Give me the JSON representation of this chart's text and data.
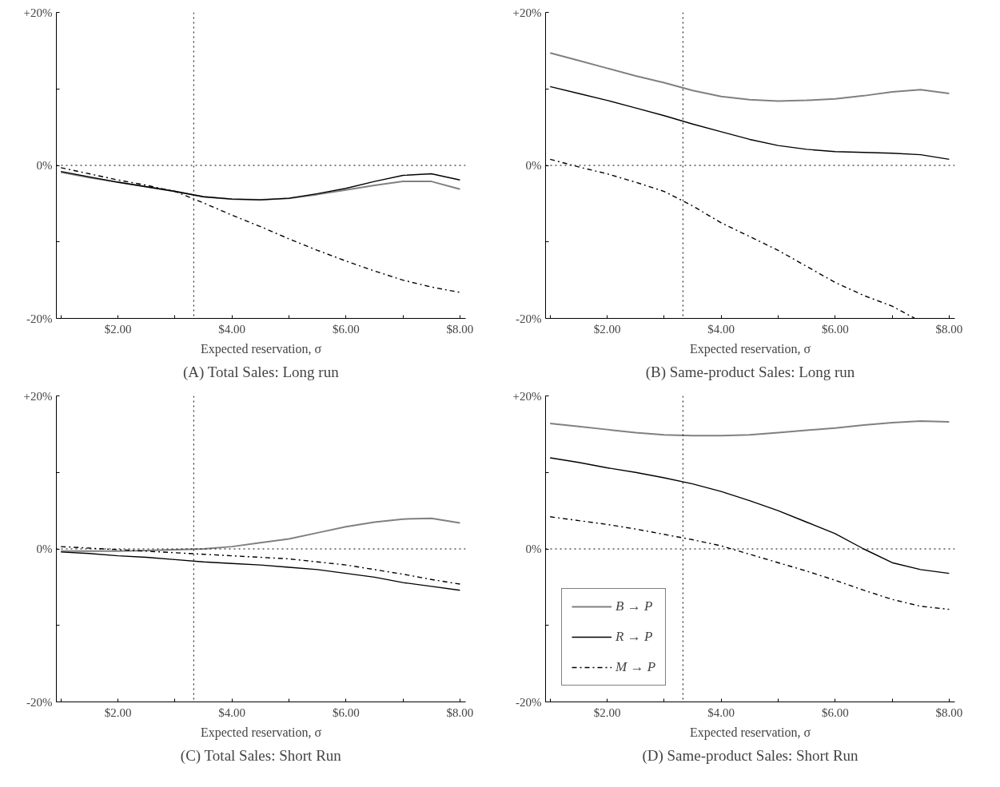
{
  "chart_data": [
    {
      "type": "line",
      "title": "(A) Total Sales: Long run",
      "xlabel": "Expected reservation, σ",
      "x": [
        1,
        1.5,
        2,
        2.5,
        3,
        3.5,
        4,
        4.5,
        5,
        5.5,
        6,
        6.5,
        7,
        7.5,
        8
      ],
      "xlim": [
        0.92,
        8.1
      ],
      "xticks": [
        {
          "value": 1,
          "label": null
        },
        {
          "value": 2,
          "label": "$2.00"
        },
        {
          "value": 3,
          "label": null
        },
        {
          "value": 4,
          "label": "$4.00"
        },
        {
          "value": 5,
          "label": null
        },
        {
          "value": 6,
          "label": "$6.00"
        },
        {
          "value": 7,
          "label": null
        },
        {
          "value": 8,
          "label": "$8.00"
        }
      ],
      "ylim": [
        -20,
        20
      ],
      "yticks": [
        {
          "value": -20,
          "label": "-20%"
        },
        {
          "value": -10,
          "label": null
        },
        {
          "value": 0,
          "label": "0%"
        },
        {
          "value": 10,
          "label": null
        },
        {
          "value": 20,
          "label": "+20%"
        }
      ],
      "grid": false,
      "legend": false,
      "ref_lines": [
        {
          "axis": "y",
          "value": 0,
          "color": "#000000",
          "line_style": "dotted"
        },
        {
          "axis": "x",
          "value": 3.33,
          "color": "#000000",
          "line_style": "dotted"
        }
      ],
      "series": [
        {
          "color": "#808080",
          "line_style": "solid",
          "values": [
            -0.9,
            -1.6,
            -2.2,
            -2.8,
            -3.4,
            -4.1,
            -4.4,
            -4.5,
            -4.3,
            -3.8,
            -3.2,
            -2.6,
            -2.1,
            -2.1,
            -3.1
          ]
        },
        {
          "color": "#000000",
          "line_style": "solid",
          "values": [
            -0.8,
            -1.5,
            -2.2,
            -2.8,
            -3.4,
            -4.1,
            -4.4,
            -4.5,
            -4.3,
            -3.7,
            -3.0,
            -2.1,
            -1.3,
            -1.1,
            -1.9
          ]
        },
        {
          "color": "#000000",
          "line_style": "dashdot",
          "values": [
            -0.3,
            -1.1,
            -1.9,
            -2.6,
            -3.4,
            -4.9,
            -6.5,
            -8.0,
            -9.6,
            -11.1,
            -12.5,
            -13.8,
            -15.0,
            -15.9,
            -16.6
          ]
        }
      ]
    },
    {
      "type": "line",
      "title": "(B) Same-product Sales: Long run",
      "xlabel": "Expected reservation, σ",
      "x": [
        1,
        1.5,
        2,
        2.5,
        3,
        3.5,
        4,
        4.5,
        5,
        5.5,
        6,
        6.5,
        7,
        7.5,
        8
      ],
      "xlim": [
        0.92,
        8.1
      ],
      "xticks": [
        {
          "value": 1,
          "label": null
        },
        {
          "value": 2,
          "label": "$2.00"
        },
        {
          "value": 3,
          "label": null
        },
        {
          "value": 4,
          "label": "$4.00"
        },
        {
          "value": 5,
          "label": null
        },
        {
          "value": 6,
          "label": "$6.00"
        },
        {
          "value": 7,
          "label": null
        },
        {
          "value": 8,
          "label": "$8.00"
        }
      ],
      "ylim": [
        -20,
        20
      ],
      "yticks": [
        {
          "value": -20,
          "label": "-20%"
        },
        {
          "value": -10,
          "label": null
        },
        {
          "value": 0,
          "label": "0%"
        },
        {
          "value": 10,
          "label": null
        },
        {
          "value": 20,
          "label": "+20%"
        }
      ],
      "grid": false,
      "legend": false,
      "ref_lines": [
        {
          "axis": "y",
          "value": 0,
          "color": "#000000",
          "line_style": "dotted"
        },
        {
          "axis": "x",
          "value": 3.33,
          "color": "#000000",
          "line_style": "dotted"
        }
      ],
      "series": [
        {
          "color": "#808080",
          "line_style": "solid",
          "values": [
            14.7,
            13.7,
            12.7,
            11.7,
            10.8,
            9.8,
            9.0,
            8.6,
            8.4,
            8.5,
            8.7,
            9.1,
            9.6,
            9.9,
            9.4
          ]
        },
        {
          "color": "#000000",
          "line_style": "solid",
          "values": [
            10.3,
            9.4,
            8.5,
            7.5,
            6.5,
            5.4,
            4.4,
            3.4,
            2.6,
            2.1,
            1.8,
            1.7,
            1.6,
            1.4,
            0.8
          ]
        },
        {
          "color": "#000000",
          "line_style": "dashdot",
          "x": [
            1,
            1.5,
            2,
            2.5,
            3,
            3.5,
            4,
            4.5,
            5,
            5.5,
            6,
            6.5,
            7,
            7.4
          ],
          "values": [
            0.8,
            -0.2,
            -1.1,
            -2.2,
            -3.4,
            -5.3,
            -7.5,
            -9.3,
            -11.1,
            -13.2,
            -15.3,
            -17.0,
            -18.4,
            -20
          ]
        }
      ]
    },
    {
      "type": "line",
      "title": "(C) Total Sales: Short Run",
      "xlabel": "Expected reservation, σ",
      "x": [
        1,
        1.5,
        2,
        2.5,
        3,
        3.5,
        4,
        4.5,
        5,
        5.5,
        6,
        6.5,
        7,
        7.5,
        8
      ],
      "xlim": [
        0.92,
        8.1
      ],
      "xticks": [
        {
          "value": 1,
          "label": null
        },
        {
          "value": 2,
          "label": "$2.00"
        },
        {
          "value": 3,
          "label": null
        },
        {
          "value": 4,
          "label": "$4.00"
        },
        {
          "value": 5,
          "label": null
        },
        {
          "value": 6,
          "label": "$6.00"
        },
        {
          "value": 7,
          "label": null
        },
        {
          "value": 8,
          "label": "$8.00"
        }
      ],
      "ylim": [
        -20,
        20
      ],
      "yticks": [
        {
          "value": -20,
          "label": "-20%"
        },
        {
          "value": -10,
          "label": null
        },
        {
          "value": 0,
          "label": "0%"
        },
        {
          "value": 10,
          "label": null
        },
        {
          "value": 20,
          "label": "+20%"
        }
      ],
      "grid": false,
      "legend": false,
      "ref_lines": [
        {
          "axis": "y",
          "value": 0,
          "color": "#000000",
          "line_style": "dotted"
        },
        {
          "axis": "x",
          "value": 3.33,
          "color": "#000000",
          "line_style": "dotted"
        }
      ],
      "series": [
        {
          "color": "#808080",
          "line_style": "solid",
          "values": [
            -0.3,
            -0.3,
            -0.3,
            -0.2,
            -0.1,
            0.0,
            0.3,
            0.8,
            1.3,
            2.1,
            2.9,
            3.5,
            3.9,
            4.0,
            3.4
          ]
        },
        {
          "color": "#000000",
          "line_style": "solid",
          "values": [
            -0.4,
            -0.6,
            -0.9,
            -1.1,
            -1.4,
            -1.7,
            -1.9,
            -2.1,
            -2.4,
            -2.7,
            -3.2,
            -3.7,
            -4.4,
            -4.9,
            -5.4
          ]
        },
        {
          "color": "#000000",
          "line_style": "dashdot",
          "values": [
            0.3,
            0.1,
            -0.1,
            -0.3,
            -0.5,
            -0.7,
            -0.9,
            -1.1,
            -1.3,
            -1.7,
            -2.1,
            -2.7,
            -3.3,
            -4.0,
            -4.6
          ]
        }
      ]
    },
    {
      "type": "line",
      "title": "(D) Same-product Sales: Short Run",
      "xlabel": "Expected reservation, σ",
      "x": [
        1,
        1.5,
        2,
        2.5,
        3,
        3.5,
        4,
        4.5,
        5,
        5.5,
        6,
        6.5,
        7,
        7.5,
        8
      ],
      "xlim": [
        0.92,
        8.1
      ],
      "xticks": [
        {
          "value": 1,
          "label": null
        },
        {
          "value": 2,
          "label": "$2.00"
        },
        {
          "value": 3,
          "label": null
        },
        {
          "value": 4,
          "label": "$4.00"
        },
        {
          "value": 5,
          "label": null
        },
        {
          "value": 6,
          "label": "$6.00"
        },
        {
          "value": 7,
          "label": null
        },
        {
          "value": 8,
          "label": "$8.00"
        }
      ],
      "ylim": [
        -20,
        20
      ],
      "yticks": [
        {
          "value": -20,
          "label": "-20%"
        },
        {
          "value": -10,
          "label": null
        },
        {
          "value": 0,
          "label": "0%"
        },
        {
          "value": 10,
          "label": null
        },
        {
          "value": 20,
          "label": "+20%"
        }
      ],
      "grid": false,
      "legend": "bottom left",
      "ref_lines": [
        {
          "axis": "y",
          "value": 0,
          "color": "#000000",
          "line_style": "dotted"
        },
        {
          "axis": "x",
          "value": 3.33,
          "color": "#000000",
          "line_style": "dotted"
        }
      ],
      "series": [
        {
          "name": "B → P",
          "color": "#808080",
          "line_style": "solid",
          "values": [
            16.4,
            16.0,
            15.6,
            15.2,
            14.9,
            14.8,
            14.8,
            14.9,
            15.2,
            15.5,
            15.8,
            16.2,
            16.5,
            16.7,
            16.6
          ]
        },
        {
          "name": "R → P",
          "color": "#000000",
          "line_style": "solid",
          "values": [
            11.9,
            11.3,
            10.6,
            10.0,
            9.3,
            8.5,
            7.5,
            6.3,
            5.0,
            3.5,
            2.0,
            0.0,
            -1.8,
            -2.7,
            -3.2
          ]
        },
        {
          "name": "M → P",
          "color": "#000000",
          "line_style": "dashdot",
          "values": [
            4.2,
            3.7,
            3.2,
            2.6,
            1.9,
            1.2,
            0.4,
            -0.7,
            -1.8,
            -2.9,
            -4.1,
            -5.4,
            -6.6,
            -7.5,
            -7.9
          ]
        }
      ]
    }
  ]
}
